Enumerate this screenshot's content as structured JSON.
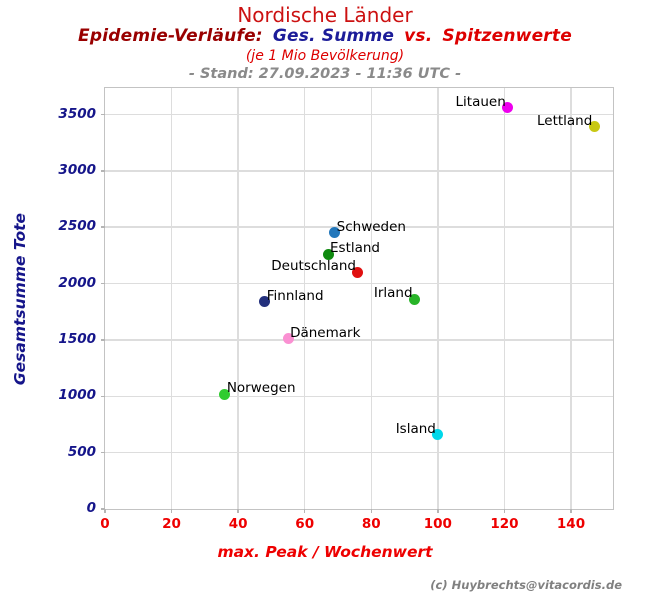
{
  "header": {
    "title": "Nordische Länder",
    "subtitle_parts": [
      {
        "text": "Epidemie-Verläufe:",
        "color": "#990000"
      },
      {
        "text": "Ges. Summe",
        "color": "#1c1c99"
      },
      {
        "text": "vs.",
        "color": "#dd0000"
      },
      {
        "text": "Spitzenwerte",
        "color": "#dd0000"
      }
    ],
    "population_note": "(je 1 Mio Bevölkerung)",
    "status_line": "- Stand: 27.09.2023 - 11:36 UTC -"
  },
  "chart_data": {
    "type": "scatter",
    "title": "Nordische Länder — Epidemie-Verläufe: Ges. Summe vs. Spitzenwerte (je 1 Mio Bevölkerung)",
    "xlabel": "max. Peak / Wochenwert",
    "ylabel": "Gesamtsumme Tote",
    "xlim": [
      0,
      152.5
    ],
    "ylim": [
      0,
      3735
    ],
    "x_ticks": [
      0,
      20,
      40,
      60,
      80,
      100,
      120,
      140
    ],
    "y_ticks": [
      0,
      500,
      1000,
      1500,
      2000,
      2500,
      3000,
      3500
    ],
    "grid": true,
    "points": [
      {
        "label": "Litauen",
        "x": 121,
        "y": 3560,
        "color": "#ee00ee",
        "label_side": "left"
      },
      {
        "label": "Lettland",
        "x": 147,
        "y": 3390,
        "color": "#c8c814",
        "label_side": "left"
      },
      {
        "label": "Schweden",
        "x": 69,
        "y": 2450,
        "color": "#2277bb",
        "label_side": "right"
      },
      {
        "label": "Estland",
        "x": 67,
        "y": 2260,
        "color": "#0f8a0f",
        "label_side": "right"
      },
      {
        "label": "Deutschland",
        "x": 76,
        "y": 2100,
        "color": "#e01010",
        "label_side": "left"
      },
      {
        "label": "Irland",
        "x": 93,
        "y": 1860,
        "color": "#28b428",
        "label_side": "left"
      },
      {
        "label": "Finnland",
        "x": 48,
        "y": 1840,
        "color": "#23307d",
        "label_side": "right"
      },
      {
        "label": "Dänemark",
        "x": 55,
        "y": 1510,
        "color": "#fa90d2",
        "label_side": "right"
      },
      {
        "label": "Norwegen",
        "x": 36,
        "y": 1020,
        "color": "#30cc30",
        "label_side": "right"
      },
      {
        "label": "Island",
        "x": 100,
        "y": 660,
        "color": "#00d8ea",
        "label_side": "left"
      }
    ]
  },
  "footer": {
    "copyright": "(c) Huybrechts@vitacordis.de"
  },
  "colors": {
    "title_red": "#cc1111",
    "bright_red": "#ee0000",
    "dark_red": "#990000",
    "navy": "#15158a",
    "gray_text": "#8a8a8a",
    "gridline": "#dddddd",
    "frame": "#c3c3c3"
  }
}
